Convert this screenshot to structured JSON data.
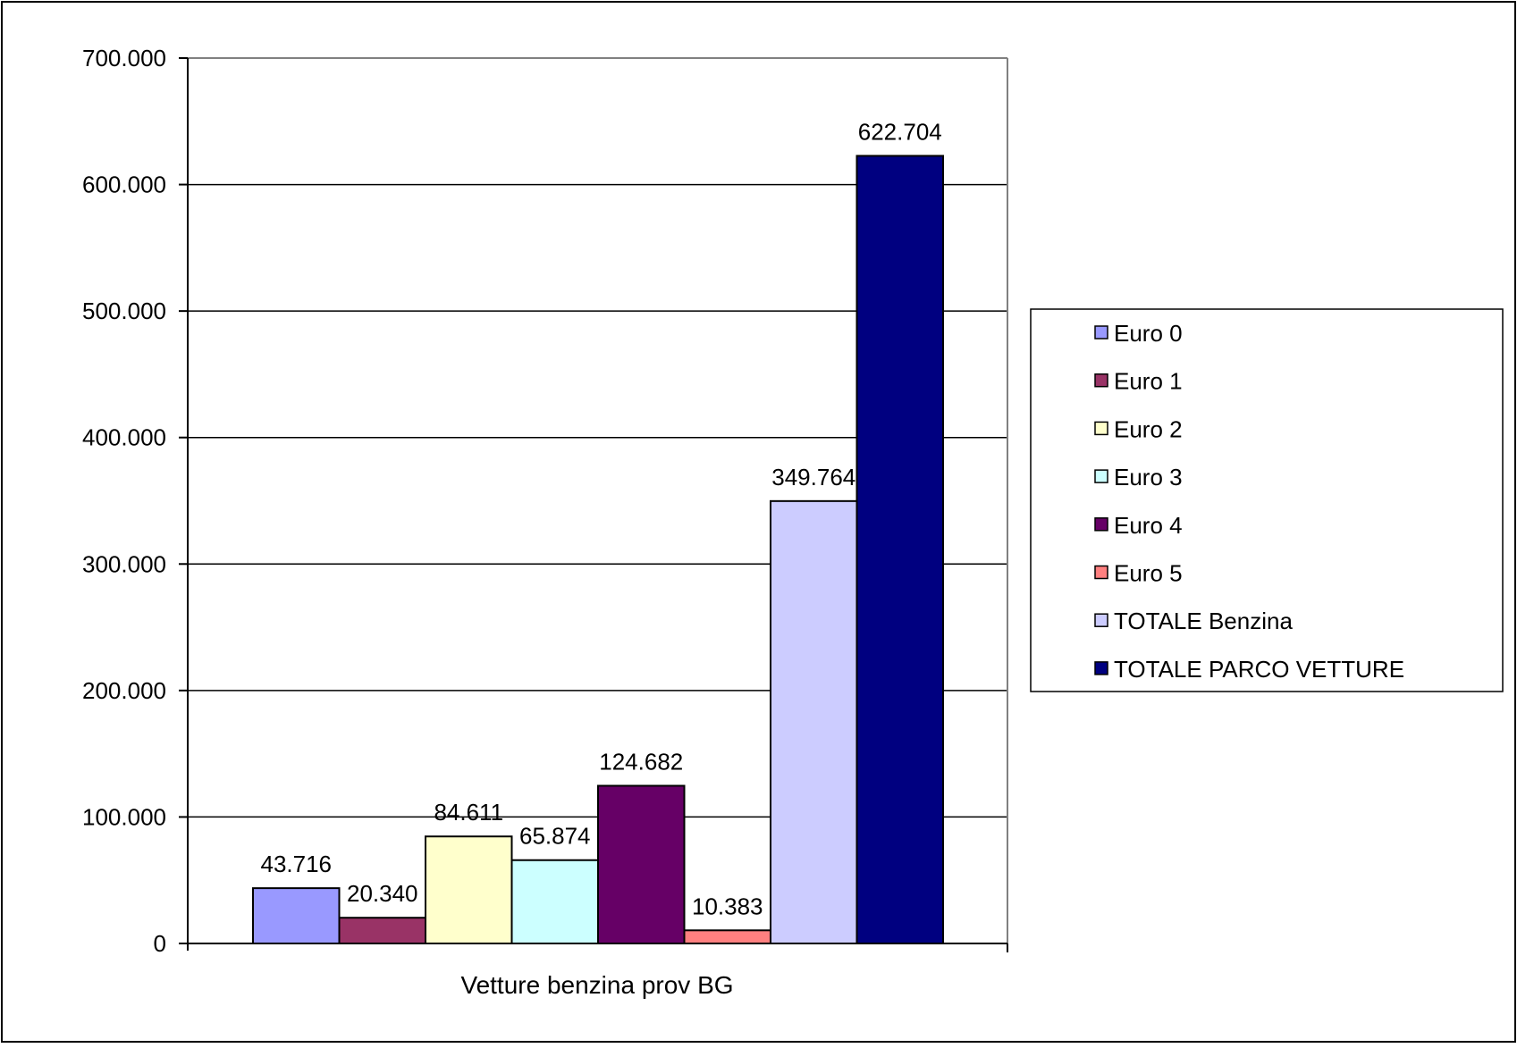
{
  "chart_data": {
    "type": "bar",
    "categories": [
      "Vetture benzina prov BG"
    ],
    "series": [
      {
        "name": "Euro 0",
        "values": [
          43716
        ],
        "label": "43.716",
        "color": "#9999FF"
      },
      {
        "name": "Euro 1",
        "values": [
          20340
        ],
        "label": "20.340",
        "color": "#993366"
      },
      {
        "name": "Euro 2",
        "values": [
          84611
        ],
        "label": "84.611",
        "color": "#FFFFCC"
      },
      {
        "name": "Euro 3",
        "values": [
          65874
        ],
        "label": "65.874",
        "color": "#CCFFFF"
      },
      {
        "name": "Euro 4",
        "values": [
          124682
        ],
        "label": "124.682",
        "color": "#660066"
      },
      {
        "name": "Euro 5",
        "values": [
          10383
        ],
        "label": "10.383",
        "color": "#FF8080"
      },
      {
        "name": "TOTALE Benzina",
        "values": [
          349764
        ],
        "label": "349.764",
        "color": "#CCCCFF"
      },
      {
        "name": "TOTALE PARCO VETTURE",
        "values": [
          622704
        ],
        "label": "622.704",
        "color": "#000080"
      }
    ],
    "ylim": [
      0,
      700000
    ],
    "yticks": [
      0,
      100000,
      200000,
      300000,
      400000,
      500000,
      600000,
      700000
    ],
    "ytick_labels": [
      "0",
      "100.000",
      "200.000",
      "300.000",
      "400.000",
      "500.000",
      "600.000",
      "700.000"
    ],
    "grid": true,
    "legend_position": "right"
  }
}
